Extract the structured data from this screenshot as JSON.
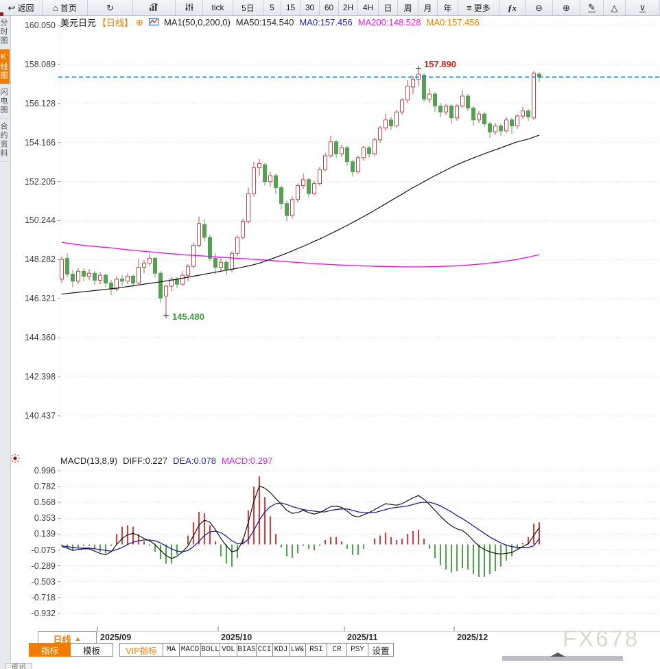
{
  "icons": {
    "back": "↩",
    "home": "⌂",
    "refresh": "↻",
    "more": "≡",
    "fx": "ƒx",
    "zoom-out": "⊖",
    "zoom-in": "⊕",
    "draw": "✎",
    "shape": "△",
    "collapse": "∨",
    "plus-circle": "⊕",
    "interval-arrow": "▲"
  },
  "toolbar": {
    "items": [
      {
        "name": "back-button",
        "icon": "back",
        "label": "返回"
      },
      {
        "name": "home-button",
        "icon": "home",
        "label": "首页"
      },
      {
        "name": "refresh-button",
        "icon": "refresh",
        "label": ""
      },
      {
        "name": "chart-type-button",
        "icon": "chart",
        "label": ""
      },
      {
        "name": "indicator-sliders-button",
        "icon": "sliders",
        "label": ""
      },
      {
        "name": "tf-tick-button",
        "label": "tick"
      },
      {
        "name": "tf-5d-button",
        "label": "5日"
      },
      {
        "name": "tf-5-button",
        "label": "5"
      },
      {
        "name": "tf-15-button",
        "label": "15"
      },
      {
        "name": "tf-30-button",
        "label": "30"
      },
      {
        "name": "tf-60-button",
        "label": "60"
      },
      {
        "name": "tf-2h-button",
        "label": "2H"
      },
      {
        "name": "tf-4h-button",
        "label": "4H"
      },
      {
        "name": "tf-day-button",
        "label": "日"
      },
      {
        "name": "tf-week-button",
        "label": "周"
      },
      {
        "name": "tf-month-button",
        "label": "月"
      },
      {
        "name": "tf-year-button",
        "label": "年"
      },
      {
        "name": "more-button",
        "icon": "more",
        "label": "更多"
      },
      {
        "name": "fx-indicator-button",
        "icon": "fx",
        "label": ""
      },
      {
        "name": "zoom-out-button",
        "icon": "zoom-out",
        "label": ""
      },
      {
        "name": "zoom-in-button",
        "icon": "zoom-in",
        "label": ""
      },
      {
        "name": "draw-button",
        "icon": "draw",
        "label": ""
      },
      {
        "name": "shape-button",
        "icon": "shape",
        "label": ""
      },
      {
        "name": "collapse-button",
        "icon": "collapse",
        "label": ""
      }
    ]
  },
  "sidebar": {
    "items": [
      {
        "name": "sidebar-item-timeshare",
        "label": "分时图",
        "selected": false
      },
      {
        "name": "sidebar-item-kline",
        "label": "K线图",
        "selected": true
      },
      {
        "name": "sidebar-item-lightning",
        "label": "闪电图",
        "selected": false
      },
      {
        "name": "sidebar-item-contract-info",
        "label": "合约资料",
        "selected": false
      }
    ]
  },
  "chart_header": {
    "symbol": "美元日元",
    "period_tag": "【日线】",
    "ma_settings": "MA1(50,0,200,0)",
    "ma50": "MA50:154.540",
    "ma0_blue": "MA0:157.456",
    "ma200": "MA200:148.528",
    "ma0_orange": "MA0:157.456"
  },
  "macd_header": {
    "title": "MACD(13,8,9)",
    "diff": "DIFF:0.227",
    "dea": "DEA:0.078",
    "macd": "MACD:0.297"
  },
  "annotations": {
    "high": "157.890",
    "low": "145.480"
  },
  "interval_button": {
    "label": "日线"
  },
  "tabs": {
    "items": [
      {
        "name": "tab-indicator",
        "label": "指标",
        "selected": true
      },
      {
        "name": "tab-template",
        "label": "模板"
      },
      {
        "name": "tab-vip-indicator",
        "label": "VIP指标",
        "vip": true
      },
      {
        "name": "tab-ma",
        "label": "MA",
        "mono": true
      },
      {
        "name": "tab-macd",
        "label": "MACD",
        "mono": true
      },
      {
        "name": "tab-boll",
        "label": "BOLL",
        "mono": true
      },
      {
        "name": "tab-vol",
        "label": "VOL",
        "mono": true
      },
      {
        "name": "tab-bias",
        "label": "BIAS",
        "mono": true
      },
      {
        "name": "tab-cci",
        "label": "CCI",
        "mono": true
      },
      {
        "name": "tab-kdj",
        "label": "KDJ",
        "mono": true
      },
      {
        "name": "tab-lw",
        "label": "LW&",
        "mono": true
      },
      {
        "name": "tab-rsi",
        "label": "RSI",
        "mono": true
      },
      {
        "name": "tab-cr",
        "label": "CR",
        "mono": true
      },
      {
        "name": "tab-psy",
        "label": "PSY",
        "mono": true
      },
      {
        "name": "tab-settings",
        "label": "设置"
      }
    ]
  },
  "watermark": "FX678",
  "corner_tab": "资讯",
  "chart_data": {
    "type": "candlestick",
    "title": "美元日元 日线",
    "main_axis": {
      "ticks": [
        160.05,
        158.089,
        156.128,
        154.166,
        152.205,
        150.244,
        148.282,
        146.321,
        144.36,
        142.398,
        140.437
      ]
    },
    "macd_axis": {
      "ticks": [
        0.996,
        0.782,
        0.568,
        0.353,
        0.139,
        -0.075,
        -0.289,
        -0.503,
        -0.718,
        -0.932
      ]
    },
    "x_axis": {
      "labels": [
        "2025/09",
        "2025/10",
        "2025/11",
        "2025/12"
      ],
      "month_start_indices": [
        7,
        29,
        52,
        72
      ]
    },
    "current_price": 157.456,
    "high_annotation": {
      "price": 157.89,
      "index": 65
    },
    "low_annotation": {
      "price": 145.48,
      "index": 19
    },
    "candles": [
      [
        147.3,
        148.45,
        147.1,
        148.3
      ],
      [
        148.35,
        148.6,
        147.4,
        147.55
      ],
      [
        147.55,
        147.75,
        146.9,
        147.2
      ],
      [
        147.2,
        147.85,
        147.05,
        147.7
      ],
      [
        147.7,
        147.85,
        147.2,
        147.45
      ],
      [
        147.45,
        147.8,
        147.25,
        147.6
      ],
      [
        147.6,
        147.7,
        147.0,
        147.25
      ],
      [
        147.25,
        147.65,
        147.05,
        147.5
      ],
      [
        147.5,
        147.6,
        146.9,
        147.1
      ],
      [
        147.1,
        147.25,
        146.5,
        146.8
      ],
      [
        146.8,
        147.45,
        146.7,
        147.3
      ],
      [
        147.3,
        147.5,
        146.95,
        147.2
      ],
      [
        147.2,
        147.6,
        147.05,
        147.45
      ],
      [
        147.45,
        147.55,
        146.9,
        147.1
      ],
      [
        147.1,
        148.3,
        147.0,
        147.9
      ],
      [
        147.9,
        148.25,
        147.6,
        148.1
      ],
      [
        148.1,
        148.6,
        147.95,
        148.35
      ],
      [
        148.35,
        148.4,
        147.4,
        147.6
      ],
      [
        147.6,
        147.7,
        146.1,
        146.35
      ],
      [
        146.45,
        147.0,
        145.48,
        146.95
      ],
      [
        146.95,
        147.4,
        146.7,
        147.3
      ],
      [
        147.3,
        147.4,
        146.85,
        147.05
      ],
      [
        147.05,
        147.7,
        146.95,
        147.5
      ],
      [
        147.5,
        148.05,
        147.2,
        147.95
      ],
      [
        147.95,
        149.15,
        147.85,
        149.0
      ],
      [
        149.0,
        150.45,
        148.9,
        150.1
      ],
      [
        150.05,
        150.3,
        149.2,
        149.4
      ],
      [
        149.4,
        149.55,
        148.2,
        148.35
      ],
      [
        148.35,
        148.6,
        147.55,
        147.9
      ],
      [
        147.9,
        148.35,
        147.7,
        148.15
      ],
      [
        148.15,
        148.25,
        147.5,
        147.8
      ],
      [
        147.8,
        148.7,
        147.65,
        148.6
      ],
      [
        148.6,
        149.5,
        148.45,
        149.4
      ],
      [
        149.4,
        150.35,
        149.3,
        150.2
      ],
      [
        150.2,
        151.9,
        150.1,
        151.6
      ],
      [
        151.6,
        153.2,
        151.45,
        152.9
      ],
      [
        152.9,
        153.35,
        152.5,
        153.1
      ],
      [
        153.05,
        153.15,
        152.0,
        152.2
      ],
      [
        152.2,
        152.7,
        151.95,
        152.5
      ],
      [
        152.5,
        152.6,
        151.6,
        151.9
      ],
      [
        151.9,
        152.0,
        150.8,
        151.1
      ],
      [
        151.1,
        151.25,
        150.2,
        150.5
      ],
      [
        150.5,
        151.45,
        150.35,
        151.3
      ],
      [
        151.3,
        152.1,
        151.15,
        152.0
      ],
      [
        152.0,
        152.6,
        151.85,
        152.3
      ],
      [
        152.3,
        152.4,
        151.4,
        151.6
      ],
      [
        151.6,
        152.25,
        151.5,
        152.1
      ],
      [
        152.1,
        152.95,
        152.0,
        152.8
      ],
      [
        152.8,
        153.65,
        152.7,
        153.5
      ],
      [
        153.5,
        154.5,
        153.4,
        154.2
      ],
      [
        154.2,
        154.3,
        153.4,
        153.6
      ],
      [
        153.6,
        154.05,
        153.45,
        153.9
      ],
      [
        153.9,
        154.0,
        153.0,
        153.2
      ],
      [
        153.2,
        153.3,
        152.45,
        152.7
      ],
      [
        152.7,
        153.5,
        152.6,
        153.4
      ],
      [
        153.4,
        154.0,
        153.25,
        153.9
      ],
      [
        153.9,
        154.0,
        153.4,
        153.6
      ],
      [
        153.6,
        154.4,
        153.5,
        154.3
      ],
      [
        154.3,
        155.0,
        154.15,
        154.9
      ],
      [
        154.9,
        155.6,
        154.75,
        155.3
      ],
      [
        155.3,
        155.45,
        154.8,
        155.0
      ],
      [
        155.0,
        155.8,
        154.9,
        155.7
      ],
      [
        155.7,
        156.4,
        155.55,
        156.3
      ],
      [
        156.3,
        157.3,
        156.15,
        157.0
      ],
      [
        156.95,
        157.5,
        156.6,
        157.35
      ],
      [
        157.35,
        157.89,
        157.0,
        157.6
      ],
      [
        157.55,
        157.65,
        156.2,
        156.35
      ],
      [
        156.35,
        156.9,
        156.15,
        156.6
      ],
      [
        156.6,
        156.7,
        155.7,
        156.0
      ],
      [
        156.0,
        156.15,
        155.45,
        155.7
      ],
      [
        155.7,
        156.1,
        155.55,
        156.0
      ],
      [
        156.0,
        156.1,
        155.1,
        155.4
      ],
      [
        155.4,
        156.1,
        155.25,
        156.0
      ],
      [
        156.0,
        156.8,
        155.9,
        156.5
      ],
      [
        156.5,
        156.6,
        155.75,
        155.9
      ],
      [
        155.9,
        156.0,
        155.0,
        155.3
      ],
      [
        155.3,
        155.75,
        155.15,
        155.6
      ],
      [
        155.6,
        155.7,
        154.95,
        155.1
      ],
      [
        155.1,
        155.2,
        154.4,
        154.7
      ],
      [
        154.7,
        155.15,
        154.55,
        155.0
      ],
      [
        155.0,
        155.1,
        154.5,
        154.75
      ],
      [
        154.75,
        155.45,
        154.65,
        155.3
      ],
      [
        155.3,
        155.4,
        154.6,
        155.0
      ],
      [
        155.0,
        155.6,
        154.85,
        155.5
      ],
      [
        155.5,
        155.95,
        155.35,
        155.75
      ],
      [
        155.75,
        155.85,
        155.25,
        155.45
      ],
      [
        155.4,
        157.75,
        155.3,
        157.65
      ],
      [
        157.6,
        157.7,
        157.2,
        157.46
      ]
    ],
    "ma50": [
      146.55,
      146.58,
      146.61,
      146.64,
      146.67,
      146.7,
      146.73,
      146.76,
      146.79,
      146.82,
      146.85,
      146.89,
      146.93,
      146.97,
      147.01,
      147.05,
      147.09,
      147.13,
      147.17,
      147.21,
      147.25,
      147.3,
      147.35,
      147.4,
      147.45,
      147.5,
      147.55,
      147.6,
      147.65,
      147.7,
      147.75,
      147.8,
      147.85,
      147.91,
      147.97,
      148.03,
      148.1,
      148.2,
      148.3,
      148.4,
      148.5,
      148.61,
      148.72,
      148.84,
      148.95,
      149.07,
      149.2,
      149.32,
      149.45,
      149.59,
      149.72,
      149.86,
      150.0,
      150.15,
      150.3,
      150.45,
      150.6,
      150.76,
      150.92,
      151.08,
      151.25,
      151.41,
      151.57,
      151.74,
      151.9,
      152.05,
      152.2,
      152.35,
      152.5,
      152.64,
      152.78,
      152.92,
      153.05,
      153.17,
      153.28,
      153.39,
      153.5,
      153.6,
      153.7,
      153.8,
      153.9,
      154.0,
      154.1,
      154.2,
      154.27,
      154.34,
      154.44,
      154.54
    ],
    "ma200": [
      149.15,
      149.11,
      149.07,
      149.03,
      149.0,
      148.97,
      148.95,
      148.92,
      148.9,
      148.87,
      148.84,
      148.81,
      148.78,
      148.75,
      148.73,
      148.7,
      148.68,
      148.65,
      148.63,
      148.6,
      148.58,
      148.56,
      148.53,
      148.51,
      148.5,
      148.48,
      148.46,
      148.44,
      148.42,
      148.4,
      148.39,
      148.37,
      148.35,
      148.33,
      148.32,
      148.3,
      148.28,
      148.26,
      148.24,
      148.22,
      148.2,
      148.18,
      148.16,
      148.14,
      148.12,
      148.1,
      148.08,
      148.07,
      148.05,
      148.04,
      148.02,
      148.01,
      148.0,
      147.99,
      147.98,
      147.97,
      147.96,
      147.95,
      147.94,
      147.94,
      147.93,
      147.93,
      147.92,
      147.92,
      147.92,
      147.92,
      147.92,
      147.93,
      147.93,
      147.94,
      147.95,
      147.96,
      147.97,
      147.99,
      148.01,
      148.03,
      148.05,
      148.08,
      148.11,
      148.14,
      148.17,
      148.21,
      148.25,
      148.3,
      148.35,
      148.41,
      148.47,
      148.53
    ],
    "macd": {
      "diff": [
        -0.03,
        -0.05,
        -0.08,
        -0.07,
        -0.06,
        -0.06,
        -0.09,
        -0.12,
        -0.14,
        -0.1,
        0.0,
        0.08,
        0.13,
        0.15,
        0.12,
        0.08,
        0.05,
        0.0,
        -0.08,
        -0.15,
        -0.19,
        -0.16,
        -0.1,
        -0.02,
        0.12,
        0.26,
        0.33,
        0.3,
        0.2,
        0.08,
        -0.02,
        -0.1,
        -0.08,
        0.05,
        0.3,
        0.58,
        0.79,
        0.76,
        0.7,
        0.62,
        0.54,
        0.46,
        0.42,
        0.43,
        0.46,
        0.43,
        0.41,
        0.43,
        0.47,
        0.51,
        0.52,
        0.5,
        0.45,
        0.39,
        0.37,
        0.4,
        0.43,
        0.47,
        0.51,
        0.55,
        0.54,
        0.53,
        0.55,
        0.59,
        0.63,
        0.66,
        0.61,
        0.54,
        0.46,
        0.38,
        0.31,
        0.25,
        0.21,
        0.19,
        0.13,
        0.05,
        -0.02,
        -0.07,
        -0.1,
        -0.12,
        -0.13,
        -0.12,
        -0.11,
        -0.07,
        -0.03,
        0.01,
        0.12,
        0.227
      ],
      "dea": [
        -0.02,
        -0.03,
        -0.04,
        -0.05,
        -0.05,
        -0.05,
        -0.06,
        -0.07,
        -0.08,
        -0.09,
        -0.07,
        -0.04,
        0.0,
        0.03,
        0.05,
        0.06,
        0.06,
        0.05,
        0.02,
        -0.02,
        -0.06,
        -0.09,
        -0.1,
        -0.08,
        -0.03,
        0.04,
        0.12,
        0.17,
        0.18,
        0.16,
        0.11,
        0.05,
        0.01,
        0.01,
        0.07,
        0.19,
        0.33,
        0.44,
        0.51,
        0.55,
        0.56,
        0.54,
        0.51,
        0.49,
        0.47,
        0.46,
        0.45,
        0.44,
        0.44,
        0.46,
        0.47,
        0.48,
        0.48,
        0.46,
        0.44,
        0.43,
        0.43,
        0.43,
        0.45,
        0.47,
        0.49,
        0.5,
        0.51,
        0.52,
        0.54,
        0.56,
        0.57,
        0.57,
        0.55,
        0.52,
        0.48,
        0.44,
        0.39,
        0.35,
        0.3,
        0.25,
        0.2,
        0.15,
        0.1,
        0.06,
        0.02,
        -0.01,
        -0.03,
        -0.04,
        -0.04,
        -0.04,
        -0.02,
        0.078
      ]
    },
    "colors": {
      "up": "#c84545",
      "down": "#55a055",
      "ma50": "#111111",
      "ma200": "#e617e6",
      "diff": "#111111",
      "dea": "#1c1c96",
      "price_line": "#1b7fd8",
      "grid": "#eed8d8",
      "annotation_high": "#cc2222",
      "annotation_low": "#3c9b3c",
      "cross": "#333333"
    }
  }
}
